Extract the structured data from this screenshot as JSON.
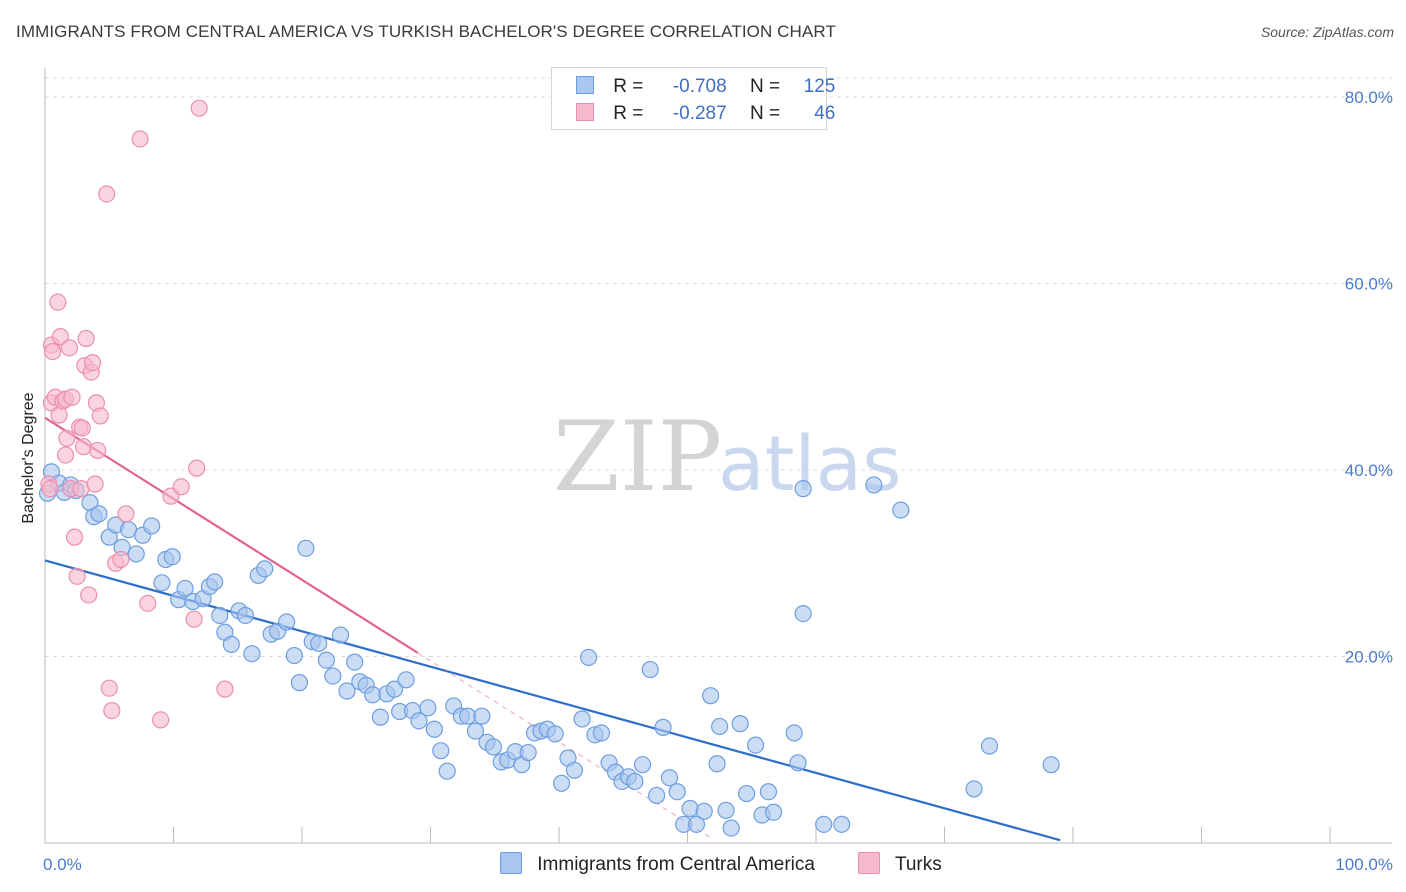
{
  "header": {
    "title": "IMMIGRANTS FROM CENTRAL AMERICA VS TURKISH BACHELOR'S DEGREE CORRELATION CHART",
    "source": "Source: ZipAtlas.com"
  },
  "watermark": {
    "zip": "ZIP",
    "atlas": "atlas"
  },
  "colors": {
    "blue_fill": "#a9c6ef",
    "blue_stroke": "#6d9ee0",
    "blue_line": "#2f6fcb",
    "pink_fill": "#f7b9cc",
    "pink_stroke": "#ec8fac",
    "pink_line": "#e0648d",
    "tick_label": "#4a7cc9",
    "grid": "#dcdcdc"
  },
  "stats_legend": [
    {
      "r_label": "R =",
      "r_value": "-0.708",
      "n_label": "N =",
      "n_value": "125",
      "color": "blue"
    },
    {
      "r_label": "R =",
      "r_value": "-0.287",
      "n_label": "N =",
      "n_value": "46",
      "color": "pink"
    }
  ],
  "chart_data": {
    "type": "scatter",
    "title": "IMMIGRANTS FROM CENTRAL AMERICA VS TURKISH BACHELOR'S DEGREE CORRELATION CHART",
    "xlabel": "",
    "ylabel": "Bachelor's Degree",
    "xlim": [
      0,
      100
    ],
    "ylim": [
      0,
      80
    ],
    "x_tick_labels": [
      "0.0%",
      "100.0%"
    ],
    "y_ticks": [
      20,
      40,
      60,
      80
    ],
    "y_tick_labels": [
      "20.0%",
      "40.0%",
      "60.0%",
      "80.0%"
    ],
    "grid": true,
    "legend_position": "bottom",
    "series": [
      {
        "name": "Immigrants from Central America",
        "color": "#a9c6ef",
        "trend": {
          "x": [
            0,
            79
          ],
          "y": [
            30.3,
            0.3
          ],
          "style": "solid"
        },
        "points": [
          [
            0.2,
            37.5
          ],
          [
            0.5,
            39.8
          ],
          [
            1.1,
            38.6
          ],
          [
            1.5,
            37.6
          ],
          [
            2.0,
            38.4
          ],
          [
            2.4,
            37.8
          ],
          [
            3.5,
            36.5
          ],
          [
            3.8,
            35.0
          ],
          [
            4.2,
            35.3
          ],
          [
            5.0,
            32.8
          ],
          [
            5.5,
            34.1
          ],
          [
            6.0,
            31.7
          ],
          [
            6.5,
            33.6
          ],
          [
            7.1,
            31.0
          ],
          [
            7.6,
            33.0
          ],
          [
            8.3,
            34.0
          ],
          [
            9.1,
            27.9
          ],
          [
            9.4,
            30.4
          ],
          [
            9.9,
            30.7
          ],
          [
            10.4,
            26.1
          ],
          [
            10.9,
            27.3
          ],
          [
            11.5,
            25.9
          ],
          [
            12.3,
            26.2
          ],
          [
            12.8,
            27.5
          ],
          [
            13.2,
            28.0
          ],
          [
            13.6,
            24.4
          ],
          [
            14.0,
            22.6
          ],
          [
            14.5,
            21.3
          ],
          [
            15.1,
            24.9
          ],
          [
            15.6,
            24.4
          ],
          [
            16.1,
            20.3
          ],
          [
            16.6,
            28.7
          ],
          [
            17.1,
            29.4
          ],
          [
            17.6,
            22.4
          ],
          [
            18.1,
            22.7
          ],
          [
            18.8,
            23.7
          ],
          [
            19.4,
            20.1
          ],
          [
            19.8,
            17.2
          ],
          [
            20.3,
            31.6
          ],
          [
            20.8,
            21.6
          ],
          [
            21.3,
            21.4
          ],
          [
            21.9,
            19.6
          ],
          [
            22.4,
            17.9
          ],
          [
            23.0,
            22.3
          ],
          [
            23.5,
            16.3
          ],
          [
            24.1,
            19.4
          ],
          [
            24.5,
            17.3
          ],
          [
            25.0,
            16.9
          ],
          [
            25.5,
            15.9
          ],
          [
            26.1,
            13.5
          ],
          [
            26.6,
            16.0
          ],
          [
            27.2,
            16.5
          ],
          [
            27.6,
            14.1
          ],
          [
            28.1,
            17.5
          ],
          [
            28.6,
            14.2
          ],
          [
            29.1,
            13.1
          ],
          [
            29.8,
            14.5
          ],
          [
            30.3,
            12.2
          ],
          [
            30.8,
            9.9
          ],
          [
            31.3,
            7.7
          ],
          [
            31.8,
            14.7
          ],
          [
            32.4,
            13.6
          ],
          [
            32.9,
            13.6
          ],
          [
            33.5,
            12.0
          ],
          [
            34.0,
            13.6
          ],
          [
            34.4,
            10.8
          ],
          [
            34.9,
            10.3
          ],
          [
            35.5,
            8.7
          ],
          [
            36.0,
            8.9
          ],
          [
            36.6,
            9.8
          ],
          [
            37.1,
            8.4
          ],
          [
            37.6,
            9.7
          ],
          [
            38.1,
            11.8
          ],
          [
            38.6,
            12.0
          ],
          [
            39.1,
            12.2
          ],
          [
            39.7,
            11.7
          ],
          [
            40.2,
            6.4
          ],
          [
            40.7,
            9.1
          ],
          [
            41.2,
            7.8
          ],
          [
            41.8,
            13.3
          ],
          [
            42.3,
            19.9
          ],
          [
            42.8,
            11.6
          ],
          [
            43.3,
            11.8
          ],
          [
            43.9,
            8.6
          ],
          [
            44.4,
            7.6
          ],
          [
            44.9,
            6.6
          ],
          [
            45.4,
            7.1
          ],
          [
            45.9,
            6.6
          ],
          [
            46.5,
            8.4
          ],
          [
            47.1,
            18.6
          ],
          [
            47.6,
            5.1
          ],
          [
            48.1,
            12.4
          ],
          [
            48.6,
            7.0
          ],
          [
            49.2,
            5.5
          ],
          [
            49.7,
            2.0
          ],
          [
            50.2,
            3.7
          ],
          [
            50.7,
            2.0
          ],
          [
            51.3,
            3.4
          ],
          [
            51.8,
            15.8
          ],
          [
            52.3,
            8.5
          ],
          [
            52.5,
            12.5
          ],
          [
            53.0,
            3.5
          ],
          [
            53.4,
            1.6
          ],
          [
            54.1,
            12.8
          ],
          [
            54.6,
            5.3
          ],
          [
            55.3,
            10.5
          ],
          [
            55.8,
            3.0
          ],
          [
            56.3,
            5.5
          ],
          [
            56.7,
            3.3
          ],
          [
            58.3,
            11.8
          ],
          [
            58.6,
            8.6
          ],
          [
            59.0,
            24.6
          ],
          [
            60.6,
            2.0
          ],
          [
            62.0,
            2.0
          ],
          [
            64.5,
            38.4
          ],
          [
            66.6,
            35.7
          ],
          [
            72.3,
            5.8
          ],
          [
            73.5,
            10.4
          ],
          [
            78.3,
            8.4
          ],
          [
            59.0,
            38.0
          ]
        ]
      },
      {
        "name": "Turks",
        "color": "#f7b9cc",
        "trend": {
          "x": [
            0,
            29
          ],
          "y": [
            45.6,
            20.4
          ],
          "style": "solid"
        },
        "trend_extension": {
          "x": [
            29,
            52
          ],
          "y": [
            20.4,
            0.4
          ],
          "style": "dashed"
        },
        "points": [
          [
            0.3,
            38.5
          ],
          [
            0.4,
            38.0
          ],
          [
            0.5,
            47.2
          ],
          [
            0.5,
            53.4
          ],
          [
            0.6,
            52.7
          ],
          [
            0.8,
            47.8
          ],
          [
            1.0,
            58.0
          ],
          [
            1.1,
            45.9
          ],
          [
            1.2,
            54.3
          ],
          [
            1.4,
            47.4
          ],
          [
            1.6,
            41.6
          ],
          [
            1.6,
            47.6
          ],
          [
            1.7,
            43.4
          ],
          [
            1.9,
            53.1
          ],
          [
            2.0,
            38.0
          ],
          [
            2.1,
            47.8
          ],
          [
            2.3,
            32.8
          ],
          [
            2.5,
            28.6
          ],
          [
            2.7,
            44.6
          ],
          [
            2.8,
            38.0
          ],
          [
            2.9,
            44.5
          ],
          [
            3.0,
            42.5
          ],
          [
            3.1,
            51.2
          ],
          [
            3.2,
            54.1
          ],
          [
            3.4,
            26.6
          ],
          [
            3.6,
            50.5
          ],
          [
            3.7,
            51.5
          ],
          [
            3.9,
            38.5
          ],
          [
            4.0,
            47.2
          ],
          [
            4.1,
            42.1
          ],
          [
            4.3,
            45.8
          ],
          [
            4.8,
            69.6
          ],
          [
            5.0,
            16.6
          ],
          [
            5.2,
            14.2
          ],
          [
            5.5,
            30.0
          ],
          [
            5.9,
            30.4
          ],
          [
            6.3,
            35.3
          ],
          [
            7.4,
            75.5
          ],
          [
            8.0,
            25.7
          ],
          [
            9.0,
            13.2
          ],
          [
            9.8,
            37.2
          ],
          [
            10.6,
            38.2
          ],
          [
            11.6,
            24.0
          ],
          [
            11.8,
            40.2
          ],
          [
            12.0,
            78.8
          ],
          [
            14.0,
            16.5
          ]
        ]
      }
    ]
  }
}
